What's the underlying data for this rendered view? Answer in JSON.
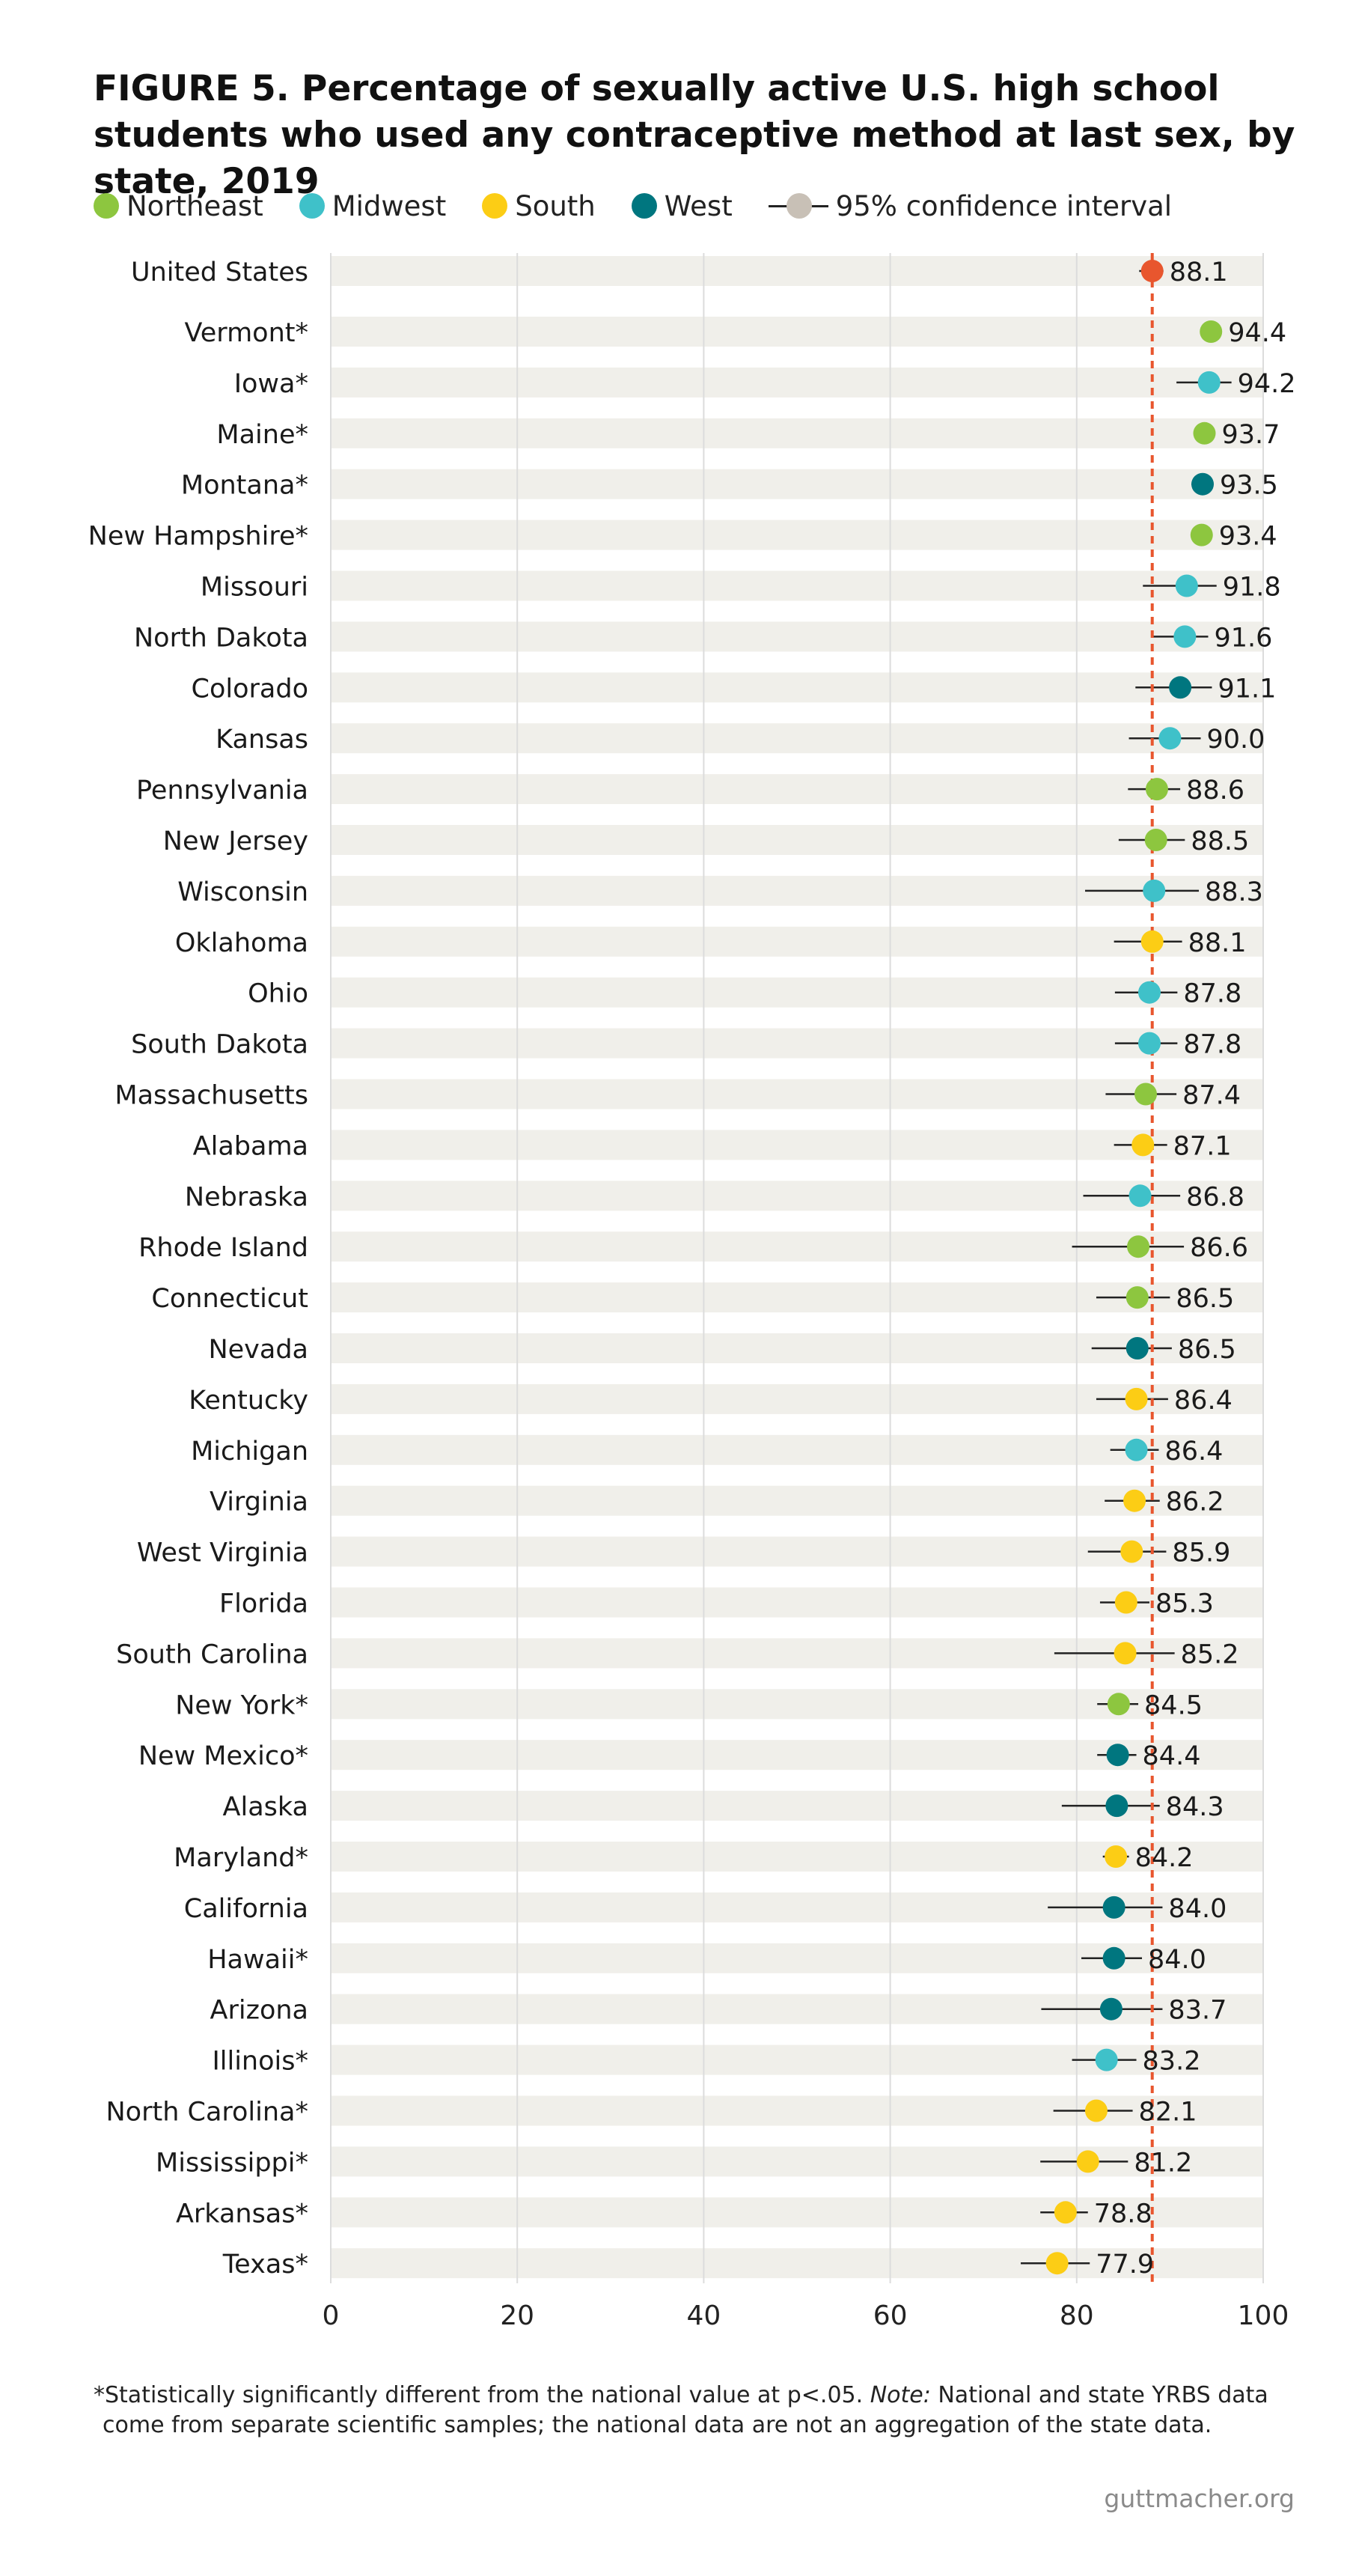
{
  "title": "FIGURE 5. Percentage of sexually active U.S. high school students who used any contraceptive method at last sex, by state, 2019",
  "legend": [
    {
      "label": "Northeast",
      "color": "#8dc63f",
      "icon": "northeast-dot-icon"
    },
    {
      "label": "Midwest",
      "color": "#3fc1c9",
      "icon": "midwest-dot-icon"
    },
    {
      "label": "South",
      "color": "#fccd15",
      "icon": "south-dot-icon"
    },
    {
      "label": "West",
      "color": "#00767f",
      "icon": "west-dot-icon"
    }
  ],
  "legend_ci": {
    "label": "95% confidence interval",
    "color": "#c8c0b6",
    "icon": "confidence-interval-icon"
  },
  "colors": {
    "us": "#e8562e",
    "reference_line": "#e8562e",
    "band": "#f0efea",
    "grid": "#dcdcdc",
    "ci": "#222222"
  },
  "chart_data": {
    "type": "scatter",
    "xlim": [
      0,
      100
    ],
    "x_ticks": [
      "0",
      "20",
      "40",
      "60",
      "80",
      "100"
    ],
    "reference_value": 88.1,
    "grid": true,
    "legend_position": "top",
    "rows": [
      {
        "label": "United States",
        "value": 88.1,
        "value_label": "88.1",
        "region": "us",
        "ci": [
          86.7,
          89.3
        ]
      },
      {
        "label": "Vermont*",
        "value": 94.4,
        "value_label": "94.4",
        "region": "Northeast",
        "ci": [
          93.6,
          95.2
        ]
      },
      {
        "label": "Iowa*",
        "value": 94.2,
        "value_label": "94.2",
        "region": "Midwest",
        "ci": [
          90.7,
          96.6
        ]
      },
      {
        "label": "Maine*",
        "value": 93.7,
        "value_label": "93.7",
        "region": "Northeast",
        "ci": [
          92.7,
          94.6
        ]
      },
      {
        "label": "Montana*",
        "value": 93.5,
        "value_label": "93.5",
        "region": "West",
        "ci": [
          92.3,
          94.5
        ]
      },
      {
        "label": "New Hampshire*",
        "value": 93.4,
        "value_label": "93.4",
        "region": "Northeast",
        "ci": [
          92.5,
          94.2
        ]
      },
      {
        "label": "Missouri",
        "value": 91.8,
        "value_label": "91.8",
        "region": "Midwest",
        "ci": [
          87.1,
          95.0
        ]
      },
      {
        "label": "North Dakota",
        "value": 91.6,
        "value_label": "91.6",
        "region": "Midwest",
        "ci": [
          88.2,
          94.1
        ]
      },
      {
        "label": "Colorado",
        "value": 91.1,
        "value_label": "91.1",
        "region": "West",
        "ci": [
          86.3,
          94.5
        ]
      },
      {
        "label": "Kansas",
        "value": 90.0,
        "value_label": "90.0",
        "region": "Midwest",
        "ci": [
          85.6,
          93.3
        ]
      },
      {
        "label": "Pennsylvania",
        "value": 88.6,
        "value_label": "88.6",
        "region": "Northeast",
        "ci": [
          85.5,
          91.1
        ]
      },
      {
        "label": "New Jersey",
        "value": 88.5,
        "value_label": "88.5",
        "region": "Northeast",
        "ci": [
          84.5,
          91.6
        ]
      },
      {
        "label": "Wisconsin",
        "value": 88.3,
        "value_label": "88.3",
        "region": "Midwest",
        "ci": [
          80.9,
          93.1
        ]
      },
      {
        "label": "Oklahoma",
        "value": 88.1,
        "value_label": "88.1",
        "region": "South",
        "ci": [
          84.0,
          91.3
        ]
      },
      {
        "label": "Ohio",
        "value": 87.8,
        "value_label": "87.8",
        "region": "Midwest",
        "ci": [
          84.1,
          90.8
        ]
      },
      {
        "label": "South Dakota",
        "value": 87.8,
        "value_label": "87.8",
        "region": "Midwest",
        "ci": [
          84.1,
          90.8
        ]
      },
      {
        "label": "Massachusetts",
        "value": 87.4,
        "value_label": "87.4",
        "region": "Northeast",
        "ci": [
          83.1,
          90.7
        ]
      },
      {
        "label": "Alabama",
        "value": 87.1,
        "value_label": "87.1",
        "region": "South",
        "ci": [
          84.0,
          89.7
        ]
      },
      {
        "label": "Nebraska",
        "value": 86.8,
        "value_label": "86.8",
        "region": "Midwest",
        "ci": [
          80.7,
          91.1
        ]
      },
      {
        "label": "Rhode Island",
        "value": 86.6,
        "value_label": "86.6",
        "region": "Northeast",
        "ci": [
          79.5,
          91.5
        ]
      },
      {
        "label": "Connecticut",
        "value": 86.5,
        "value_label": "86.5",
        "region": "Northeast",
        "ci": [
          82.1,
          90.0
        ]
      },
      {
        "label": "Nevada",
        "value": 86.5,
        "value_label": "86.5",
        "region": "West",
        "ci": [
          81.6,
          90.2
        ]
      },
      {
        "label": "Kentucky",
        "value": 86.4,
        "value_label": "86.4",
        "region": "South",
        "ci": [
          82.1,
          89.8
        ]
      },
      {
        "label": "Michigan",
        "value": 86.4,
        "value_label": "86.4",
        "region": "Midwest",
        "ci": [
          83.6,
          88.8
        ]
      },
      {
        "label": "Virginia",
        "value": 86.2,
        "value_label": "86.2",
        "region": "South",
        "ci": [
          83.0,
          88.9
        ]
      },
      {
        "label": "West Virginia",
        "value": 85.9,
        "value_label": "85.9",
        "region": "South",
        "ci": [
          81.2,
          89.6
        ]
      },
      {
        "label": "Florida",
        "value": 85.3,
        "value_label": "85.3",
        "region": "South",
        "ci": [
          82.5,
          87.8
        ]
      },
      {
        "label": "South Carolina",
        "value": 85.2,
        "value_label": "85.2",
        "region": "South",
        "ci": [
          77.6,
          90.5
        ]
      },
      {
        "label": "New York*",
        "value": 84.5,
        "value_label": "84.5",
        "region": "Northeast",
        "ci": [
          82.2,
          86.6
        ]
      },
      {
        "label": "New Mexico*",
        "value": 84.4,
        "value_label": "84.4",
        "region": "West",
        "ci": [
          82.2,
          86.4
        ]
      },
      {
        "label": "Alaska",
        "value": 84.3,
        "value_label": "84.3",
        "region": "West",
        "ci": [
          78.4,
          88.9
        ]
      },
      {
        "label": "Maryland*",
        "value": 84.2,
        "value_label": "84.2",
        "region": "South",
        "ci": [
          82.8,
          85.6
        ]
      },
      {
        "label": "California",
        "value": 84.0,
        "value_label": "84.0",
        "region": "West",
        "ci": [
          76.9,
          89.2
        ]
      },
      {
        "label": "Hawaii*",
        "value": 84.0,
        "value_label": "84.0",
        "region": "West",
        "ci": [
          80.5,
          87.0
        ]
      },
      {
        "label": "Arizona",
        "value": 83.7,
        "value_label": "83.7",
        "region": "West",
        "ci": [
          76.2,
          89.2
        ]
      },
      {
        "label": "Illinois*",
        "value": 83.2,
        "value_label": "83.2",
        "region": "Midwest",
        "ci": [
          79.5,
          86.4
        ]
      },
      {
        "label": "North Carolina*",
        "value": 82.1,
        "value_label": "82.1",
        "region": "South",
        "ci": [
          77.5,
          86.0
        ]
      },
      {
        "label": "Mississippi*",
        "value": 81.2,
        "value_label": "81.2",
        "region": "South",
        "ci": [
          76.1,
          85.5
        ]
      },
      {
        "label": "Arkansas*",
        "value": 78.8,
        "value_label": "78.8",
        "region": "South",
        "ci": [
          76.1,
          81.2
        ]
      },
      {
        "label": "Texas*",
        "value": 77.9,
        "value_label": "77.9",
        "region": "South",
        "ci": [
          74.0,
          81.4
        ]
      }
    ]
  },
  "footnote": {
    "line1_a": "*Statistically significantly different from the national value at p<.05. ",
    "line1_note": "Note:",
    "line1_b": " National and state YRBS data",
    "line2": "come from separate scientific samples; the national data are not an aggregation of the state data."
  },
  "source": "guttmacher.org"
}
